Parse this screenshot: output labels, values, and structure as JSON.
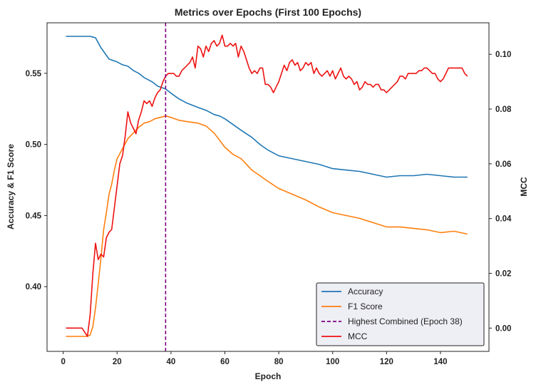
{
  "chart_data": {
    "type": "line",
    "title": "Metrics over Epochs (First 100 Epochs)",
    "xlabel": "Epoch",
    "ylabel_left": "Accuracy & F1 Score",
    "ylabel_right": "MCC",
    "xlim": [
      -6,
      158
    ],
    "ylim_left": [
      0.3545,
      0.5855
    ],
    "ylim_right": [
      -0.0085,
      0.1115
    ],
    "x_ticks": [
      0,
      20,
      40,
      60,
      80,
      100,
      120,
      140
    ],
    "y_ticks_left": [
      0.4,
      0.45,
      0.5,
      0.55
    ],
    "y_ticks_right": [
      0.0,
      0.02,
      0.04,
      0.06,
      0.08,
      0.1
    ],
    "y_tick_format_left": 2,
    "y_tick_format_right": 2,
    "grid": false,
    "legend_placement": "lower-right",
    "vline": {
      "x": 38,
      "color": "#800080",
      "label": "Highest Combined (Epoch 38)"
    },
    "series": [
      {
        "name": "Accuracy",
        "axis": "left",
        "color": "#1f77b4",
        "x": [
          1,
          5,
          8,
          10,
          12,
          14,
          17,
          20,
          22,
          24,
          26,
          28,
          30,
          33,
          35,
          38,
          40,
          43,
          46,
          50,
          53,
          56,
          58,
          60,
          63,
          66,
          70,
          73,
          76,
          80,
          85,
          90,
          95,
          100,
          105,
          110,
          115,
          120,
          125,
          130,
          135,
          140,
          145,
          150
        ],
        "y": [
          0.576,
          0.576,
          0.576,
          0.576,
          0.575,
          0.568,
          0.56,
          0.558,
          0.556,
          0.555,
          0.552,
          0.55,
          0.547,
          0.544,
          0.541,
          0.539,
          0.536,
          0.532,
          0.529,
          0.526,
          0.524,
          0.521,
          0.52,
          0.518,
          0.514,
          0.51,
          0.505,
          0.5,
          0.496,
          0.492,
          0.49,
          0.488,
          0.486,
          0.483,
          0.482,
          0.481,
          0.479,
          0.477,
          0.478,
          0.478,
          0.479,
          0.478,
          0.477,
          0.477
        ]
      },
      {
        "name": "F1 Score",
        "axis": "left",
        "color": "#ff7f0e",
        "x": [
          1,
          5,
          8,
          9,
          10,
          11,
          12,
          13,
          14,
          15,
          16,
          17,
          18,
          19,
          20,
          22,
          24,
          26,
          28,
          30,
          32,
          34,
          36,
          38,
          40,
          43,
          46,
          50,
          53,
          56,
          58,
          60,
          63,
          66,
          70,
          73,
          76,
          80,
          85,
          90,
          95,
          100,
          105,
          110,
          115,
          120,
          125,
          130,
          135,
          140,
          145,
          150
        ],
        "y": [
          0.365,
          0.365,
          0.365,
          0.365,
          0.366,
          0.372,
          0.385,
          0.402,
          0.42,
          0.44,
          0.452,
          0.465,
          0.472,
          0.482,
          0.49,
          0.497,
          0.504,
          0.508,
          0.512,
          0.515,
          0.516,
          0.518,
          0.519,
          0.52,
          0.519,
          0.517,
          0.516,
          0.515,
          0.513,
          0.508,
          0.503,
          0.498,
          0.493,
          0.49,
          0.482,
          0.478,
          0.474,
          0.469,
          0.465,
          0.461,
          0.456,
          0.452,
          0.45,
          0.448,
          0.445,
          0.442,
          0.442,
          0.441,
          0.44,
          0.438,
          0.439,
          0.437
        ]
      },
      {
        "name": "MCC",
        "axis": "right",
        "color": "#ee1111",
        "x": [
          1,
          5,
          7,
          9,
          10,
          11,
          12,
          13,
          14,
          15,
          16,
          17,
          18,
          19,
          20,
          21,
          22,
          23,
          24,
          25,
          26,
          27,
          28,
          29,
          30,
          31,
          32,
          33,
          34,
          35,
          36,
          37,
          38,
          39,
          40,
          41,
          42,
          43,
          44,
          45,
          46,
          47,
          48,
          49,
          50,
          51,
          52,
          53,
          54,
          55,
          56,
          57,
          58,
          59,
          60,
          61,
          62,
          63,
          64,
          65,
          66,
          67,
          68,
          69,
          70,
          71,
          72,
          73,
          74,
          75,
          76,
          77,
          78,
          79,
          80,
          81,
          82,
          83,
          84,
          85,
          86,
          87,
          88,
          89,
          90,
          91,
          92,
          93,
          94,
          95,
          96,
          97,
          98,
          99,
          100,
          101,
          102,
          103,
          104,
          105,
          106,
          107,
          108,
          109,
          110,
          111,
          112,
          113,
          114,
          115,
          116,
          117,
          118,
          119,
          120,
          121,
          122,
          123,
          124,
          125,
          126,
          127,
          128,
          129,
          130,
          131,
          132,
          133,
          134,
          135,
          136,
          137,
          138,
          139,
          140,
          141,
          142,
          143,
          144,
          145,
          146,
          147,
          148,
          149,
          150
        ],
        "y": [
          0.0,
          0.0,
          0.0,
          -0.003,
          0.005,
          0.02,
          0.031,
          0.025,
          0.027,
          0.026,
          0.033,
          0.035,
          0.036,
          0.044,
          0.052,
          0.06,
          0.063,
          0.07,
          0.079,
          0.075,
          0.073,
          0.071,
          0.076,
          0.079,
          0.083,
          0.082,
          0.083,
          0.081,
          0.084,
          0.086,
          0.087,
          0.09,
          0.092,
          0.093,
          0.093,
          0.093,
          0.092,
          0.092,
          0.094,
          0.095,
          0.096,
          0.097,
          0.099,
          0.095,
          0.103,
          0.102,
          0.099,
          0.103,
          0.101,
          0.104,
          0.105,
          0.103,
          0.104,
          0.107,
          0.103,
          0.103,
          0.104,
          0.103,
          0.104,
          0.099,
          0.103,
          0.101,
          0.098,
          0.095,
          0.093,
          0.094,
          0.093,
          0.095,
          0.095,
          0.089,
          0.089,
          0.088,
          0.086,
          0.088,
          0.09,
          0.093,
          0.096,
          0.094,
          0.097,
          0.098,
          0.096,
          0.097,
          0.094,
          0.095,
          0.097,
          0.096,
          0.097,
          0.093,
          0.095,
          0.093,
          0.092,
          0.093,
          0.094,
          0.092,
          0.094,
          0.091,
          0.093,
          0.095,
          0.092,
          0.091,
          0.092,
          0.091,
          0.089,
          0.09,
          0.087,
          0.088,
          0.09,
          0.089,
          0.089,
          0.088,
          0.089,
          0.089,
          0.087,
          0.087,
          0.086,
          0.087,
          0.088,
          0.089,
          0.09,
          0.092,
          0.092,
          0.091,
          0.093,
          0.093,
          0.093,
          0.093,
          0.094,
          0.094,
          0.095,
          0.095,
          0.094,
          0.093,
          0.093,
          0.091,
          0.09,
          0.091,
          0.093,
          0.095,
          0.095,
          0.095,
          0.095,
          0.095,
          0.095,
          0.093,
          0.092
        ]
      }
    ]
  }
}
